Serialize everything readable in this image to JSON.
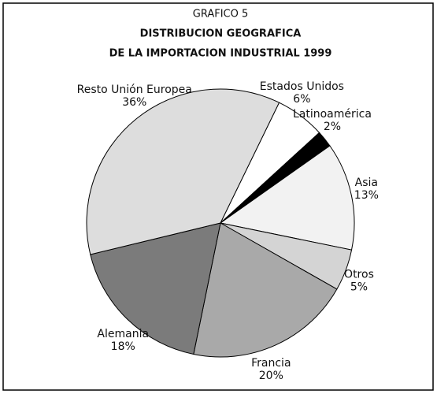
{
  "chart_data": {
    "type": "pie",
    "title": "GRAFICO 5",
    "subtitle": [
      "DISTRIBUCION GEOGRAFICA",
      "DE LA IMPORTACION INDUSTRIAL 1999"
    ],
    "categories": [
      "Estados Unidos",
      "Latinoamérica",
      "Asia",
      "Otros",
      "Francia",
      "Alemania",
      "Resto Unión Europea"
    ],
    "values": [
      6,
      2,
      13,
      5,
      20,
      18,
      36
    ],
    "value_labels": [
      "6%",
      "2%",
      "13%",
      "5%",
      "20%",
      "18%",
      "36%"
    ],
    "colors": [
      "#ffffff",
      "#000000",
      "#f2f2f2",
      "#d4d4d4",
      "#a9a9a9",
      "#7b7b7b",
      "#dddddd"
    ],
    "start_angle": 26
  }
}
